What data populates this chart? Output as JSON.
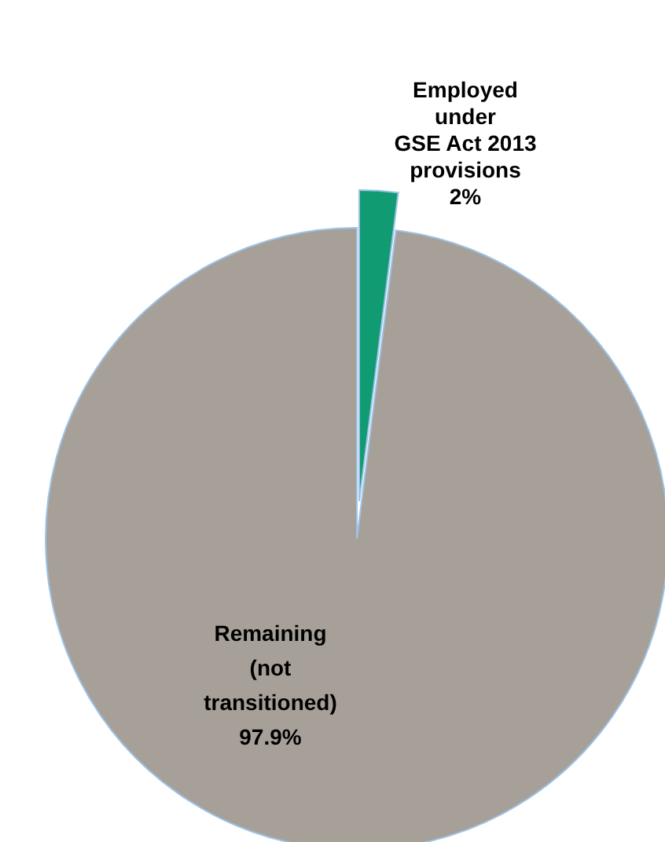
{
  "chart_data": {
    "type": "pie",
    "categories": [
      "Employed\nunder\nGSE Act 2013\nprovisions",
      "Remaining\n(not\ntransitioned)"
    ],
    "values": [
      2,
      97.9
    ],
    "value_labels": [
      "2%",
      "97.9%"
    ],
    "colors": [
      "#119b72",
      "#a7a099"
    ]
  }
}
